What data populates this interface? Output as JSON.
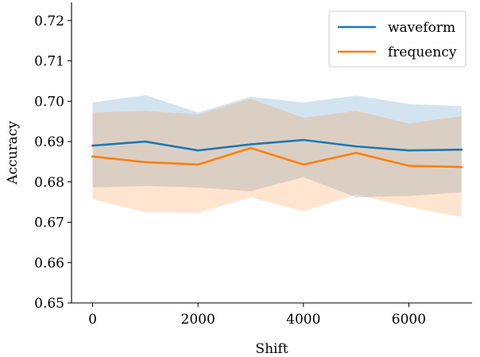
{
  "chart_data": {
    "type": "line",
    "xlabel": "Shift",
    "ylabel": "Accuracy",
    "xlim": [
      -400,
      7200
    ],
    "ylim": [
      0.65,
      0.7245
    ],
    "xticks": [
      0,
      2000,
      4000,
      6000
    ],
    "xtick_labels": [
      "0",
      "2000",
      "4000",
      "6000"
    ],
    "yticks": [
      0.65,
      0.66,
      0.67,
      0.68,
      0.69,
      0.7,
      0.71,
      0.72
    ],
    "ytick_labels": [
      "0.65",
      "0.66",
      "0.67",
      "0.68",
      "0.69",
      "0.70",
      "0.71",
      "0.72"
    ],
    "grid": false,
    "legend_position": "top-right",
    "x": [
      0,
      1000,
      2000,
      3000,
      4000,
      5000,
      6000,
      7000
    ],
    "series": [
      {
        "name": "waveform",
        "color": "#1f77b4",
        "band_color": "#1f77b4",
        "values": [
          0.689,
          0.69,
          0.6878,
          0.6893,
          0.6904,
          0.6888,
          0.6878,
          0.688
        ],
        "upper": [
          0.6997,
          0.7015,
          0.6972,
          0.7011,
          0.6997,
          0.7014,
          0.6993,
          0.6988
        ],
        "lower": [
          0.6786,
          0.679,
          0.6786,
          0.6777,
          0.6812,
          0.6762,
          0.6765,
          0.6774
        ]
      },
      {
        "name": "frequency",
        "color": "#ff7f0e",
        "band_color": "#ff7f0e",
        "values": [
          0.6863,
          0.6849,
          0.6843,
          0.6884,
          0.6843,
          0.6872,
          0.684,
          0.6837
        ],
        "upper": [
          0.6972,
          0.6976,
          0.6967,
          0.7006,
          0.6959,
          0.6976,
          0.6945,
          0.6963
        ],
        "lower": [
          0.6757,
          0.6725,
          0.6723,
          0.6762,
          0.6727,
          0.6769,
          0.6738,
          0.6713
        ]
      }
    ]
  }
}
